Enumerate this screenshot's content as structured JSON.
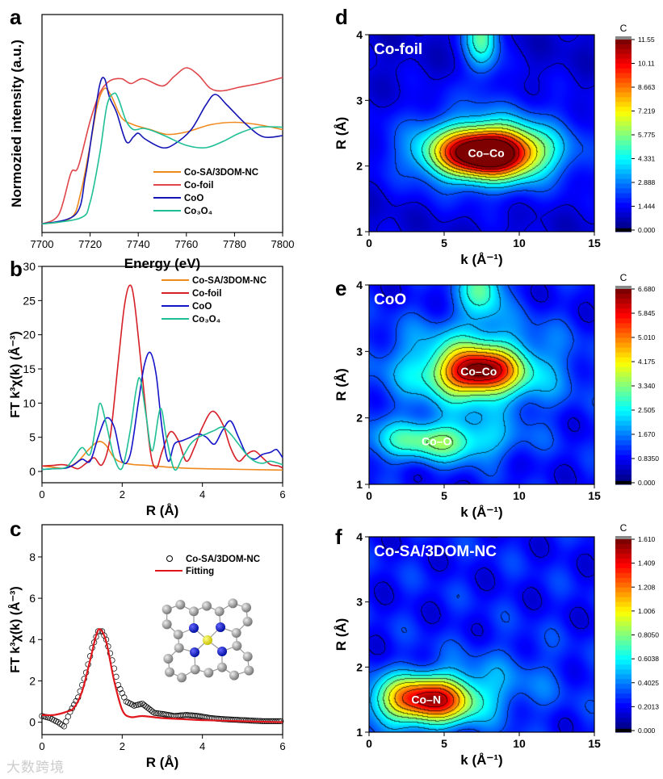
{
  "watermark": "大数跨境",
  "chart_data": [
    {
      "id": "a",
      "panel_label": "a",
      "type": "line",
      "xlabel": "Energy (eV)",
      "ylabel": "Normozied intensity (a.u.)",
      "xlim": [
        7700,
        7800
      ],
      "xticks": [
        7700,
        7720,
        7740,
        7760,
        7780,
        7800
      ],
      "ylim": [
        -0.05,
        1.75
      ],
      "yticks": [],
      "legend_position": "center-right",
      "series": [
        {
          "name": "Co-SA/3DOM-NC",
          "color": "#f08a1e",
          "x": [
            7700,
            7712,
            7716,
            7720,
            7723,
            7726,
            7729,
            7733,
            7738,
            7745,
            7752,
            7760,
            7770,
            7780,
            7790,
            7800
          ],
          "y": [
            0.02,
            0.07,
            0.27,
            0.67,
            1.0,
            1.14,
            1.07,
            0.9,
            0.84,
            0.8,
            0.76,
            0.78,
            0.84,
            0.86,
            0.84,
            0.8
          ]
        },
        {
          "name": "Co-foil",
          "color": "#e0454a",
          "x": [
            7700,
            7707,
            7712,
            7715,
            7720,
            7724,
            7728,
            7733,
            7737,
            7742,
            7750,
            7755,
            7760,
            7765,
            7770,
            7775,
            7782,
            7790,
            7800
          ],
          "y": [
            0.02,
            0.1,
            0.44,
            0.49,
            0.87,
            1.1,
            1.2,
            1.22,
            1.18,
            1.22,
            1.16,
            1.24,
            1.31,
            1.25,
            1.14,
            1.12,
            1.15,
            1.18,
            1.23
          ]
        },
        {
          "name": "CoO",
          "color": "#1414b4",
          "x": [
            7700,
            7714,
            7718,
            7721,
            7724,
            7726,
            7728,
            7731,
            7735,
            7738,
            7740,
            7743,
            7750,
            7755,
            7762,
            7768,
            7772,
            7777,
            7785,
            7792,
            7800
          ],
          "y": [
            0.02,
            0.1,
            0.41,
            0.8,
            1.17,
            1.22,
            1.07,
            0.94,
            0.7,
            0.74,
            0.77,
            0.72,
            0.65,
            0.68,
            0.8,
            1.0,
            1.09,
            1.0,
            0.84,
            0.74,
            0.75
          ]
        },
        {
          "name": "Co₃O₄",
          "color": "#1fbf95",
          "x": [
            7700,
            7716,
            7720,
            7724,
            7727,
            7730,
            7732,
            7735,
            7738,
            7742,
            7746,
            7752,
            7760,
            7768,
            7775,
            7782,
            7790,
            7800
          ],
          "y": [
            0.02,
            0.07,
            0.2,
            0.6,
            1.0,
            1.1,
            1.04,
            0.87,
            0.8,
            0.81,
            0.79,
            0.74,
            0.67,
            0.65,
            0.7,
            0.77,
            0.82,
            0.82
          ]
        }
      ]
    },
    {
      "id": "b",
      "panel_label": "b",
      "type": "line",
      "xlabel": "R (Å)",
      "ylabel": "FT k³χ(k) (Å⁻³)",
      "xlim": [
        0,
        6
      ],
      "xticks": [
        0,
        2,
        4,
        6
      ],
      "ylim": [
        -1.65,
        30
      ],
      "yticks": [
        0,
        5,
        10,
        15,
        20,
        25,
        30
      ],
      "legend_position": "top-right",
      "series": [
        {
          "name": "Co-SA/3DOM-NC",
          "color": "#f08a1e",
          "x": [
            0,
            0.3,
            0.6,
            0.9,
            1.1,
            1.3,
            1.45,
            1.6,
            1.8,
            2.0,
            2.3,
            2.6,
            3.0,
            3.5,
            4,
            5,
            6
          ],
          "y": [
            0.8,
            0.6,
            0.5,
            1.5,
            2.8,
            4.0,
            4.4,
            3.8,
            2.0,
            1.3,
            1.0,
            0.9,
            0.7,
            0.5,
            0.4,
            0.3,
            0.2
          ]
        },
        {
          "name": "Co-foil",
          "color": "#d61f26",
          "x": [
            0,
            0.3,
            0.5,
            0.7,
            0.9,
            1.1,
            1.3,
            1.5,
            1.7,
            1.9,
            2.05,
            2.18,
            2.3,
            2.5,
            2.7,
            2.85,
            3.0,
            3.2,
            3.4,
            3.6,
            3.8,
            4.0,
            4.25,
            4.5,
            4.7,
            4.9,
            5.1,
            5.3,
            5.5,
            5.7,
            5.9,
            6.0
          ],
          "y": [
            0.8,
            0.9,
            1.0,
            0.8,
            0.4,
            1.2,
            2.0,
            1.0,
            5,
            16,
            24,
            27.2,
            25,
            14,
            3,
            0.5,
            3,
            5.8,
            4.5,
            1.5,
            3.5,
            6.5,
            8.8,
            7,
            3.5,
            1.5,
            2.5,
            3,
            2,
            1,
            0.8,
            0.5
          ]
        },
        {
          "name": "CoO",
          "color": "#1414c8",
          "x": [
            0,
            0.3,
            0.6,
            0.8,
            1.0,
            1.2,
            1.4,
            1.6,
            1.8,
            2.0,
            2.2,
            2.4,
            2.55,
            2.7,
            2.85,
            3.0,
            3.15,
            3.3,
            3.5,
            3.7,
            3.9,
            4.1,
            4.3,
            4.5,
            4.7,
            4.9,
            5.1,
            5.3,
            5.5,
            5.7,
            5.85,
            6.0
          ],
          "y": [
            0.3,
            0.4,
            0.5,
            1.0,
            1.8,
            1.5,
            5,
            7.8,
            6.5,
            1.5,
            2.5,
            10,
            15.5,
            17.4,
            14,
            6,
            1.5,
            4,
            4.5,
            5,
            5.5,
            5,
            4,
            6,
            7.4,
            5,
            2.5,
            1.8,
            2.5,
            2.8,
            3.2,
            2.0
          ]
        },
        {
          "name": "Co₃O₄",
          "color": "#1fbf95",
          "x": [
            0,
            0.3,
            0.6,
            0.8,
            1.0,
            1.2,
            1.35,
            1.45,
            1.6,
            1.8,
            2.0,
            2.2,
            2.35,
            2.45,
            2.6,
            2.75,
            2.95,
            3.1,
            3.3,
            3.5,
            3.7,
            3.9,
            4.1,
            4.3,
            4.5,
            4.7,
            4.9,
            5.1,
            5.3,
            5.5,
            5.7,
            6.0
          ],
          "y": [
            0.3,
            0.4,
            0.6,
            2.0,
            3.5,
            2.5,
            7,
            10,
            7,
            2.0,
            0.5,
            6,
            12,
            13.5,
            8,
            3,
            9.2,
            5,
            0.3,
            2,
            4,
            5,
            5.5,
            6,
            6.5,
            5.5,
            4,
            2.5,
            1.5,
            1.2,
            1.5,
            1.0
          ]
        }
      ]
    },
    {
      "id": "c",
      "panel_label": "c",
      "type": "scatter",
      "xlabel": "R (Å)",
      "ylabel": "FT k³χ(k) (Å⁻³)",
      "xlim": [
        0,
        6
      ],
      "xticks": [
        0,
        2,
        4,
        6
      ],
      "ylim": [
        -0.6,
        9.56
      ],
      "yticks": [
        0,
        2,
        4,
        6,
        8
      ],
      "legend_position": "top-right",
      "series": [
        {
          "name": "Co-SA/3DOM-NC",
          "color": "#000000",
          "marker": "open-circle",
          "x": [
            0,
            0.2,
            0.4,
            0.55,
            0.7,
            0.9,
            1.1,
            1.25,
            1.4,
            1.5,
            1.6,
            1.75,
            1.9,
            2.1,
            2.3,
            2.5,
            2.8,
            3.0,
            3.3,
            3.6,
            3.9,
            4.2,
            4.5,
            5,
            5.5,
            6
          ],
          "y": [
            0.3,
            0.2,
            0.0,
            -0.2,
            0.5,
            1.2,
            2.4,
            3.6,
            4.4,
            4.4,
            4.0,
            3.0,
            1.8,
            1.0,
            0.8,
            0.9,
            0.45,
            0.4,
            0.3,
            0.35,
            0.3,
            0.2,
            0.15,
            0.1,
            0.05,
            0.05
          ]
        },
        {
          "name": "Fitting",
          "color": "#e0161c",
          "marker": "line",
          "x": [
            0,
            0.3,
            0.6,
            0.8,
            1.0,
            1.2,
            1.35,
            1.45,
            1.6,
            1.8,
            2.0,
            2.2,
            2.5,
            3.0,
            3.5,
            4,
            5,
            6
          ],
          "y": [
            0.35,
            0.35,
            0.5,
            0.7,
            1.5,
            3.0,
            4.2,
            4.5,
            3.9,
            2.0,
            0.6,
            0.25,
            0.3,
            0.2,
            0.15,
            0.1,
            0.05,
            0.0
          ]
        }
      ]
    },
    {
      "id": "d",
      "panel_label": "d",
      "type": "heatmap",
      "title": "Co-foil",
      "xlabel": "k (Å⁻¹)",
      "ylabel": "R (Å)",
      "xlim": [
        0,
        15
      ],
      "xticks": [
        0,
        5,
        10,
        15
      ],
      "ylim": [
        1,
        4
      ],
      "yticks": [
        1,
        2,
        3,
        4
      ],
      "colorbar": {
        "title": "C",
        "max": 11.55,
        "ticks": [
          "0.000",
          "1.444",
          "2.888",
          "4.331",
          "5.775",
          "7.219",
          "8.663",
          "10.11",
          "11.55"
        ]
      },
      "base": 1.2,
      "hotspots": [
        {
          "label": "Co–Co",
          "k": 7.8,
          "R": 2.2,
          "value": 11.5,
          "sk": 2.4,
          "sR": 0.26
        },
        {
          "label": "",
          "k": 7.5,
          "R": 4.0,
          "value": 4.5,
          "sk": 0.8,
          "sR": 0.4
        },
        {
          "label": "",
          "k": 8,
          "R": 2.3,
          "value": 2.5,
          "sk": 4.5,
          "sR": 0.5
        }
      ]
    },
    {
      "id": "e",
      "panel_label": "e",
      "type": "heatmap",
      "title": "CoO",
      "xlabel": "k (Å⁻¹)",
      "ylabel": "R (Å)",
      "xlim": [
        0,
        15
      ],
      "xticks": [
        0,
        5,
        10,
        15
      ],
      "ylim": [
        1,
        4
      ],
      "yticks": [
        1,
        2,
        3,
        4
      ],
      "colorbar": {
        "title": "C",
        "max": 6.68,
        "ticks": [
          "0.000",
          "0.8350",
          "1.670",
          "2.505",
          "3.340",
          "4.175",
          "5.010",
          "5.845",
          "6.680"
        ]
      },
      "base": 1.1,
      "hotspots": [
        {
          "label": "Co–Co",
          "k": 7.3,
          "R": 2.7,
          "value": 4.0,
          "sk": 1.7,
          "sR": 0.22
        },
        {
          "label": "",
          "k": 7.0,
          "R": 2.75,
          "value": 2.4,
          "sk": 3.8,
          "sR": 0.45
        },
        {
          "label": "Co–O",
          "k": 4.5,
          "R": 1.65,
          "value": 2.4,
          "sk": 3.2,
          "sR": 0.22
        },
        {
          "label": "",
          "k": 7.5,
          "R": 4.0,
          "value": 2.2,
          "sk": 1.0,
          "sR": 0.35
        }
      ]
    },
    {
      "id": "f",
      "panel_label": "f",
      "type": "heatmap",
      "title": "Co-SA/3DOM-NC",
      "xlabel": "k (Å⁻¹)",
      "ylabel": "R (Å)",
      "xlim": [
        0,
        15
      ],
      "xticks": [
        0,
        5,
        10,
        15
      ],
      "ylim": [
        1,
        4
      ],
      "yticks": [
        1,
        2,
        3,
        4
      ],
      "colorbar": {
        "title": "C",
        "max": 1.61,
        "ticks": [
          "0.000",
          "0.2013",
          "0.4025",
          "0.6038",
          "0.8050",
          "1.006",
          "1.208",
          "1.409",
          "1.610"
        ]
      },
      "base": 0.28,
      "hotspots": [
        {
          "label": "Co–N",
          "k": 3.8,
          "R": 1.5,
          "value": 1.3,
          "sk": 2.3,
          "sR": 0.26
        },
        {
          "label": "",
          "k": 9,
          "R": 1.8,
          "value": 0.15,
          "sk": 3,
          "sR": 0.4
        }
      ]
    }
  ]
}
